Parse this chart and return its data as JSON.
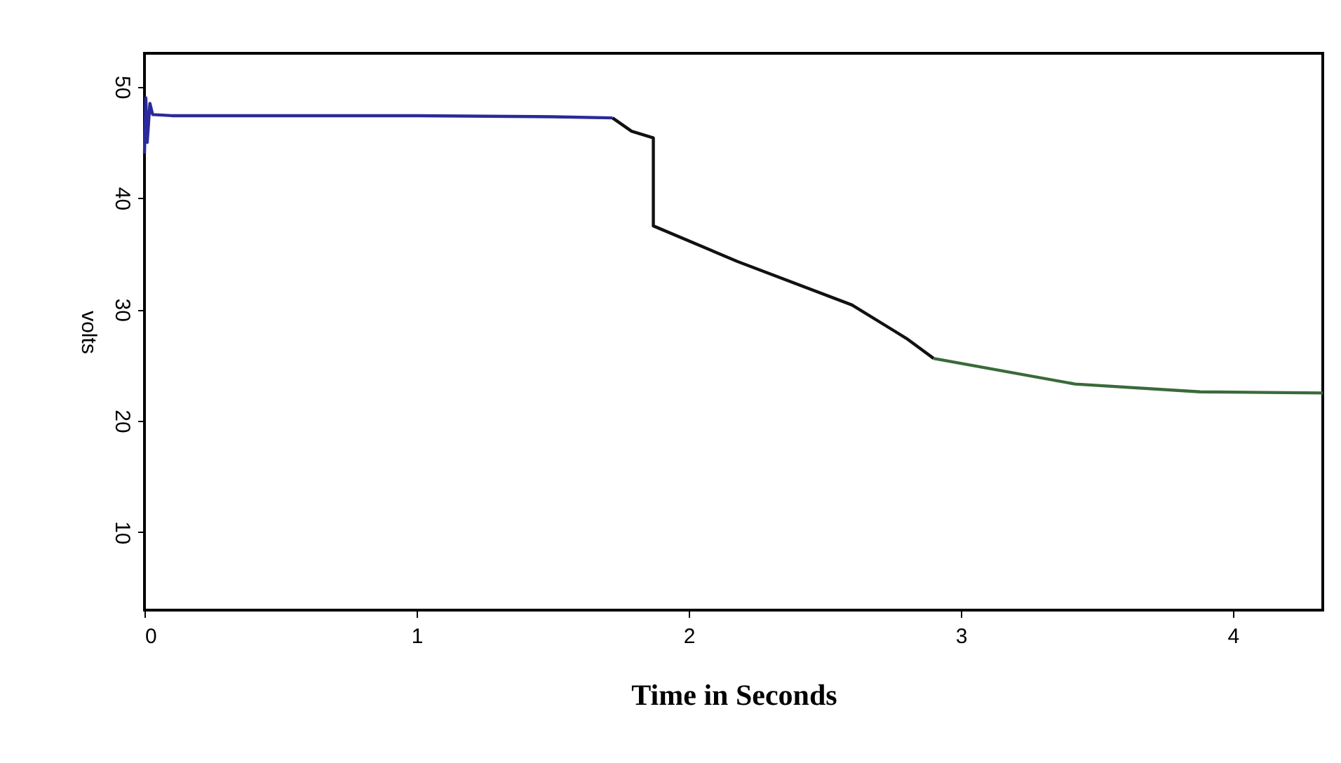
{
  "chart_data": {
    "type": "line",
    "xlabel": "Time in Seconds",
    "ylabel": "volts",
    "xlim": [
      0,
      4.33
    ],
    "xticks": [
      0,
      1,
      2,
      3,
      4
    ],
    "ylim": [
      3,
      53
    ],
    "yticks": [
      10,
      20,
      30,
      40,
      50
    ],
    "grid": false,
    "line_style": "solid",
    "series": [
      {
        "color": "#2a2a9a",
        "x": [
          0,
          0.005,
          0.01,
          0.02,
          0.03,
          0.1,
          1.0,
          1.5,
          1.72
        ],
        "values": [
          44,
          49,
          45,
          48.5,
          47.5,
          47.4,
          47.4,
          47.3,
          47.2
        ]
      },
      {
        "color": "#111111",
        "x": [
          1.72,
          1.79,
          1.87,
          1.87,
          2.18,
          2.6,
          2.8,
          2.9
        ],
        "values": [
          47.2,
          46,
          45.4,
          37.5,
          34.3,
          30.4,
          27.4,
          25.6
        ]
      },
      {
        "color": "#3a6a3a",
        "x": [
          2.9,
          3.42,
          3.88,
          4.33
        ],
        "values": [
          25.6,
          23.3,
          22.6,
          22.5
        ]
      }
    ]
  }
}
